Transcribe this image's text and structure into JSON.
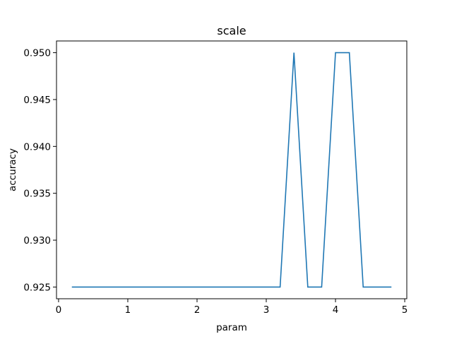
{
  "chart_data": {
    "type": "line",
    "title": "scale",
    "xlabel": "param",
    "ylabel": "accuracy",
    "xlim": [
      -0.03,
      5.03
    ],
    "ylim": [
      0.92375,
      0.95125
    ],
    "xticks": [
      0,
      1,
      2,
      3,
      4,
      5
    ],
    "xtick_labels": [
      "0",
      "1",
      "2",
      "3",
      "4",
      "5"
    ],
    "yticks": [
      0.925,
      0.93,
      0.935,
      0.94,
      0.945,
      0.95
    ],
    "ytick_labels": [
      "0.925",
      "0.930",
      "0.935",
      "0.940",
      "0.945",
      "0.950"
    ],
    "grid": false,
    "series": [
      {
        "color": "#1f77b4",
        "x": [
          0.2,
          0.4,
          0.6,
          0.8,
          1.0,
          1.2,
          1.4,
          1.6,
          1.8,
          2.0,
          2.2,
          2.4,
          2.6,
          2.8,
          3.0,
          3.2,
          3.4,
          3.6,
          3.8,
          4.0,
          4.2,
          4.4,
          4.6,
          4.8
        ],
        "y": [
          0.925,
          0.925,
          0.925,
          0.925,
          0.925,
          0.925,
          0.925,
          0.925,
          0.925,
          0.925,
          0.925,
          0.925,
          0.925,
          0.925,
          0.925,
          0.925,
          0.95,
          0.925,
          0.925,
          0.95,
          0.95,
          0.925,
          0.925,
          0.925
        ]
      }
    ]
  }
}
